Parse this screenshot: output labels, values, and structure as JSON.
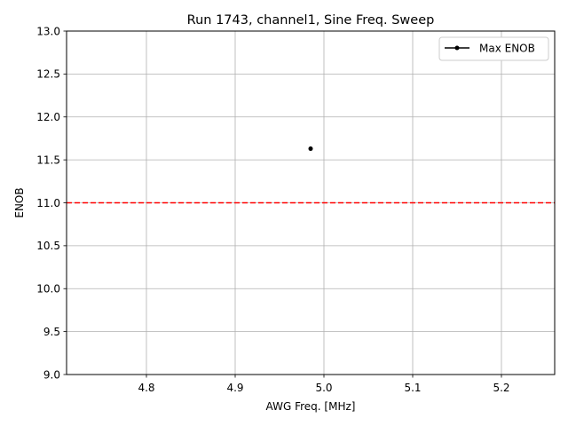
{
  "chart_data": {
    "type": "scatter",
    "title": "Run 1743, channel1, Sine Freq. Sweep",
    "xlabel": "AWG Freq. [MHz]",
    "ylabel": "ENOB",
    "xlim": [
      4.71,
      5.26
    ],
    "ylim": [
      9.0,
      13.0
    ],
    "xticks": [
      4.8,
      4.9,
      5.0,
      5.1,
      5.2
    ],
    "xtick_labels": [
      "4.8",
      "4.9",
      "5.0",
      "5.1",
      "5.2"
    ],
    "yticks": [
      9.0,
      9.5,
      10.0,
      10.5,
      11.0,
      11.5,
      12.0,
      12.5,
      13.0
    ],
    "ytick_labels": [
      "9.0",
      "9.5",
      "10.0",
      "10.5",
      "11.0",
      "11.5",
      "12.0",
      "12.5",
      "13.0"
    ],
    "grid": true,
    "legend_position": "top-right",
    "series": [
      {
        "name": "Max ENOB",
        "color": "#000000",
        "marker": "point",
        "points": [
          {
            "x": 4.985,
            "y": 11.63
          }
        ]
      }
    ],
    "reference_lines": [
      {
        "orientation": "horizontal",
        "y": 11.0,
        "color": "#ff0000",
        "style": "dashed"
      }
    ]
  }
}
